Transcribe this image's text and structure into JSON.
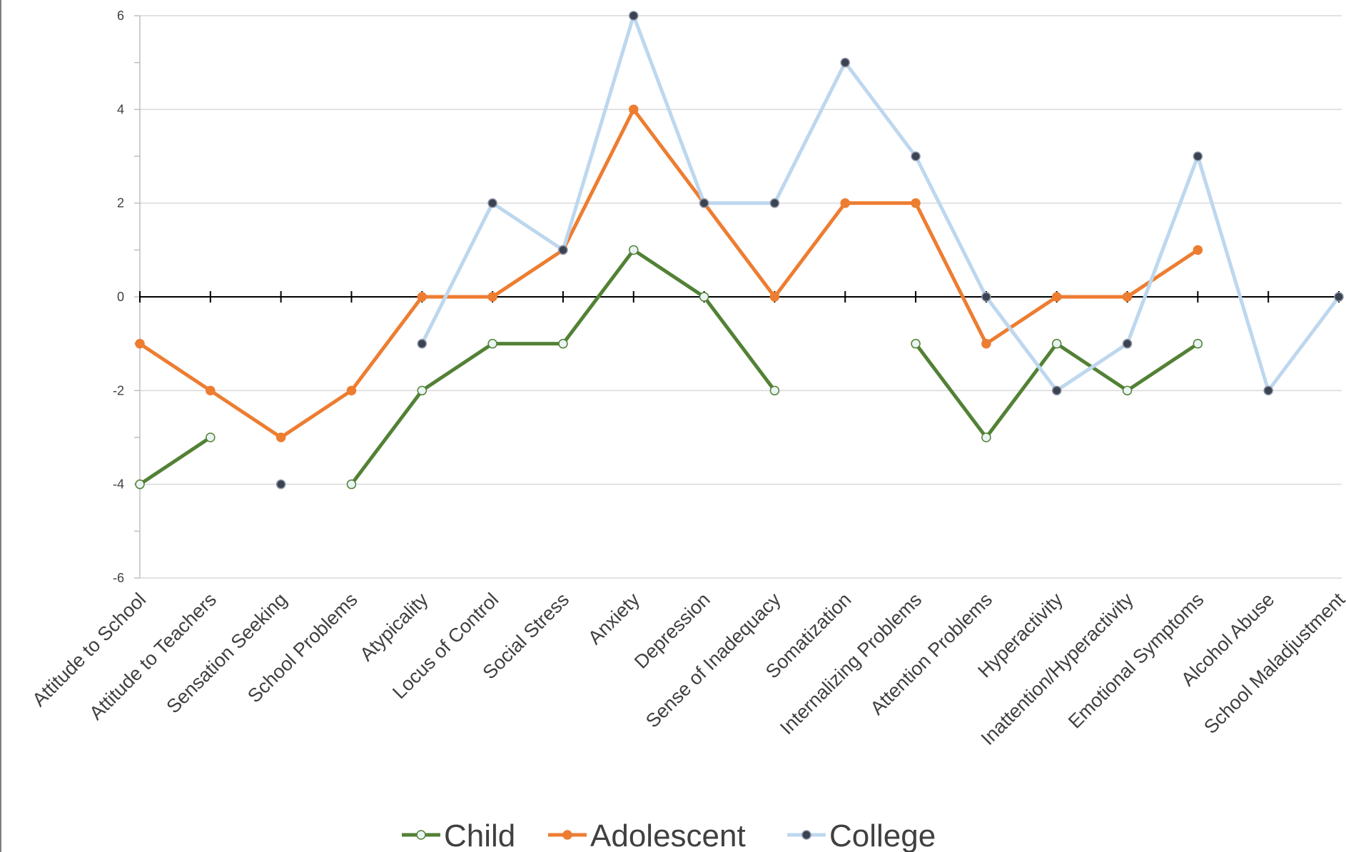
{
  "chart_data": {
    "type": "line",
    "categories": [
      "Attitude to School",
      "Attitude to Teachers",
      "Sensation Seeking",
      "School Problems",
      "Atypicality",
      "Locus of Control",
      "Social Stress",
      "Anxiety",
      "Depression",
      "Sense of Inadequacy",
      "Somatization",
      "Internalizing Problems",
      "Attention Problems",
      "Hyperactivity",
      "Inattention/Hyperactivity",
      "Emotional Symptoms",
      "Alcohol Abuse",
      "School Maladjustment"
    ],
    "ylim": [
      -6,
      6
    ],
    "yticks": [
      -6,
      -4,
      -2,
      0,
      2,
      4,
      6
    ],
    "grid": true,
    "legend_position": "bottom",
    "series": [
      {
        "name": "Child",
        "color": "#538135",
        "marker": "open-circle",
        "values": [
          -4,
          -3,
          null,
          -4,
          -2,
          -1,
          -1,
          1,
          0,
          -2,
          null,
          -1,
          -3,
          -1,
          -2,
          -1,
          null,
          null
        ]
      },
      {
        "name": "Adolescent",
        "color": "#ED7D31",
        "marker": "filled-circle",
        "values": [
          -1,
          -2,
          -3,
          -2,
          0,
          0,
          1,
          4,
          2,
          0,
          2,
          2,
          -1,
          0,
          0,
          1,
          null,
          null
        ]
      },
      {
        "name": "College",
        "color": "#BDD7EE",
        "marker": "dark-circle",
        "values": [
          null,
          null,
          -4,
          null,
          -1,
          2,
          1,
          6,
          2,
          2,
          5,
          3,
          0,
          -2,
          -1,
          3,
          -2,
          0
        ]
      }
    ]
  }
}
